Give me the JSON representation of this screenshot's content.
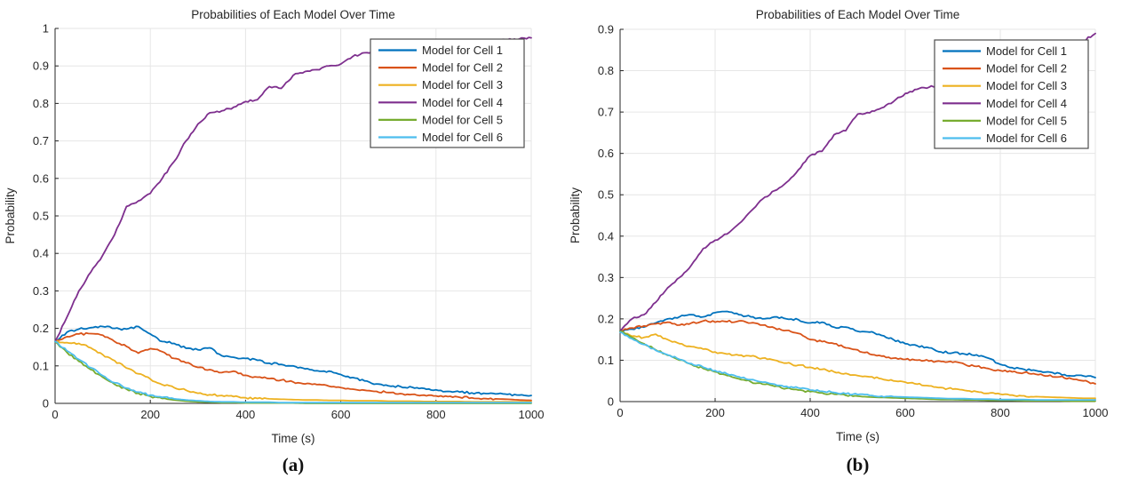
{
  "figure_background": "#ffffff",
  "colors": {
    "axis": "#262626",
    "tick_label": "#262626",
    "grid": "#e6e6e6",
    "legend_border": "#4d4d4d",
    "legend_background": "#ffffff"
  },
  "chart_data": [
    {
      "type": "line",
      "title": "Probabilities of Each Model Over Time",
      "xlabel": "Time (s)",
      "ylabel": "Probability",
      "caption": "(a)",
      "xlim": [
        0,
        1000
      ],
      "ylim": [
        0,
        1
      ],
      "xticks": [
        0,
        200,
        400,
        600,
        800,
        1000
      ],
      "yticks": [
        0,
        0.1,
        0.2,
        0.3,
        0.4,
        0.5,
        0.6,
        0.7,
        0.8,
        0.9,
        1
      ],
      "ytick_labels": [
        "0",
        "0.1",
        "0.2",
        "0.3",
        "0.4",
        "0.5",
        "0.6",
        "0.7",
        "0.8",
        "0.9",
        "1"
      ],
      "grid": true,
      "legend_position": "top-right",
      "x": [
        0,
        25,
        50,
        75,
        100,
        125,
        150,
        175,
        200,
        225,
        250,
        275,
        300,
        325,
        350,
        375,
        400,
        425,
        450,
        475,
        500,
        525,
        550,
        575,
        600,
        625,
        650,
        675,
        700,
        725,
        750,
        775,
        800,
        825,
        850,
        875,
        900,
        925,
        950,
        975,
        1000
      ],
      "series": [
        {
          "name": "Model for Cell 1",
          "color": "#0072BD",
          "values": [
            0.165,
            0.19,
            0.198,
            0.202,
            0.205,
            0.2,
            0.198,
            0.205,
            0.185,
            0.165,
            0.16,
            0.147,
            0.143,
            0.148,
            0.127,
            0.123,
            0.12,
            0.115,
            0.107,
            0.104,
            0.1,
            0.092,
            0.087,
            0.086,
            0.077,
            0.069,
            0.06,
            0.052,
            0.047,
            0.045,
            0.043,
            0.04,
            0.036,
            0.032,
            0.03,
            0.028,
            0.027,
            0.025,
            0.024,
            0.022,
            0.021
          ]
        },
        {
          "name": "Model for Cell 2",
          "color": "#D95319",
          "values": [
            0.165,
            0.178,
            0.185,
            0.186,
            0.182,
            0.165,
            0.152,
            0.134,
            0.146,
            0.138,
            0.12,
            0.108,
            0.096,
            0.09,
            0.082,
            0.086,
            0.075,
            0.07,
            0.066,
            0.062,
            0.057,
            0.052,
            0.05,
            0.046,
            0.042,
            0.038,
            0.035,
            0.032,
            0.029,
            0.026,
            0.024,
            0.022,
            0.02,
            0.018,
            0.016,
            0.015,
            0.013,
            0.012,
            0.011,
            0.009,
            0.008
          ]
        },
        {
          "name": "Model for Cell 3",
          "color": "#EDB120",
          "values": [
            0.165,
            0.162,
            0.16,
            0.148,
            0.13,
            0.114,
            0.094,
            0.079,
            0.065,
            0.05,
            0.042,
            0.035,
            0.027,
            0.023,
            0.021,
            0.018,
            0.015,
            0.013,
            0.012,
            0.011,
            0.01,
            0.009,
            0.009,
            0.008,
            0.008,
            0.007,
            0.007,
            0.007,
            0.006,
            0.006,
            0.006,
            0.005,
            0.005,
            0.005,
            0.005,
            0.004,
            0.004,
            0.004,
            0.004,
            0.004,
            0.004
          ]
        },
        {
          "name": "Model for Cell 4",
          "color": "#7E2F8E",
          "values": [
            0.165,
            0.23,
            0.3,
            0.35,
            0.395,
            0.45,
            0.525,
            0.54,
            0.56,
            0.6,
            0.645,
            0.7,
            0.745,
            0.775,
            0.78,
            0.79,
            0.805,
            0.81,
            0.845,
            0.84,
            0.875,
            0.885,
            0.89,
            0.9,
            0.905,
            0.925,
            0.935,
            0.94,
            0.944,
            0.948,
            0.951,
            0.954,
            0.957,
            0.96,
            0.962,
            0.964,
            0.966,
            0.968,
            0.97,
            0.972,
            0.975
          ]
        },
        {
          "name": "Model for Cell 5",
          "color": "#77AC30",
          "values": [
            0.165,
            0.136,
            0.112,
            0.09,
            0.07,
            0.051,
            0.038,
            0.027,
            0.019,
            0.013,
            0.009,
            0.006,
            0.004,
            0.003,
            0.002,
            0.002,
            0.001,
            0.001,
            0.001,
            0.001,
            0.001,
            0,
            0,
            0,
            0,
            0,
            0,
            0,
            0,
            0,
            0,
            0,
            0,
            0,
            0,
            0,
            0,
            0,
            0,
            0,
            0
          ]
        },
        {
          "name": "Model for Cell 6",
          "color": "#4DBEEE",
          "values": [
            0.165,
            0.14,
            0.117,
            0.095,
            0.074,
            0.055,
            0.041,
            0.03,
            0.022,
            0.016,
            0.012,
            0.009,
            0.007,
            0.005,
            0.004,
            0.004,
            0.003,
            0.003,
            0.003,
            0.002,
            0.002,
            0.002,
            0.002,
            0.002,
            0.002,
            0.002,
            0.002,
            0.002,
            0.002,
            0.002,
            0.002,
            0.002,
            0.002,
            0.002,
            0.002,
            0.002,
            0.002,
            0.002,
            0.002,
            0.002,
            0.002
          ]
        }
      ]
    },
    {
      "type": "line",
      "title": "Probabilities of Each Model Over Time",
      "xlabel": "Time (s)",
      "ylabel": "Probability",
      "caption": "(b)",
      "xlim": [
        0,
        1000
      ],
      "ylim": [
        0,
        0.9
      ],
      "xticks": [
        0,
        200,
        400,
        600,
        800,
        1000
      ],
      "yticks": [
        0,
        0.1,
        0.2,
        0.3,
        0.4,
        0.5,
        0.6,
        0.7,
        0.8,
        0.9
      ],
      "ytick_labels": [
        "0",
        "0.1",
        "0.2",
        "0.3",
        "0.4",
        "0.5",
        "0.6",
        "0.7",
        "0.8",
        "0.9"
      ],
      "grid": true,
      "legend_position": "top-right",
      "x": [
        0,
        25,
        50,
        75,
        100,
        125,
        150,
        175,
        200,
        225,
        250,
        275,
        300,
        325,
        350,
        375,
        400,
        425,
        450,
        475,
        500,
        525,
        550,
        575,
        600,
        625,
        650,
        675,
        700,
        725,
        750,
        775,
        800,
        825,
        850,
        875,
        900,
        925,
        950,
        975,
        1000
      ],
      "series": [
        {
          "name": "Model for Cell 1",
          "color": "#0072BD",
          "values": [
            0.17,
            0.175,
            0.18,
            0.19,
            0.2,
            0.205,
            0.21,
            0.205,
            0.215,
            0.218,
            0.21,
            0.205,
            0.2,
            0.205,
            0.2,
            0.198,
            0.19,
            0.192,
            0.18,
            0.18,
            0.17,
            0.168,
            0.16,
            0.15,
            0.14,
            0.135,
            0.13,
            0.12,
            0.118,
            0.115,
            0.113,
            0.105,
            0.09,
            0.082,
            0.078,
            0.075,
            0.072,
            0.068,
            0.062,
            0.062,
            0.058
          ]
        },
        {
          "name": "Model for Cell 2",
          "color": "#D95319",
          "values": [
            0.17,
            0.178,
            0.183,
            0.188,
            0.192,
            0.185,
            0.19,
            0.195,
            0.192,
            0.193,
            0.195,
            0.19,
            0.185,
            0.178,
            0.172,
            0.165,
            0.15,
            0.145,
            0.14,
            0.13,
            0.125,
            0.115,
            0.11,
            0.105,
            0.102,
            0.1,
            0.098,
            0.097,
            0.095,
            0.09,
            0.085,
            0.08,
            0.075,
            0.072,
            0.07,
            0.066,
            0.062,
            0.06,
            0.055,
            0.05,
            0.043
          ]
        },
        {
          "name": "Model for Cell 3",
          "color": "#EDB120",
          "values": [
            0.17,
            0.158,
            0.155,
            0.163,
            0.15,
            0.14,
            0.133,
            0.127,
            0.12,
            0.115,
            0.112,
            0.11,
            0.105,
            0.1,
            0.093,
            0.088,
            0.083,
            0.078,
            0.072,
            0.068,
            0.063,
            0.06,
            0.055,
            0.05,
            0.047,
            0.042,
            0.038,
            0.034,
            0.03,
            0.027,
            0.024,
            0.02,
            0.018,
            0.016,
            0.014,
            0.012,
            0.011,
            0.01,
            0.009,
            0.008,
            0.008
          ]
        },
        {
          "name": "Model for Cell 4",
          "color": "#7E2F8E",
          "values": [
            0.17,
            0.2,
            0.21,
            0.24,
            0.275,
            0.3,
            0.33,
            0.37,
            0.39,
            0.405,
            0.43,
            0.46,
            0.49,
            0.51,
            0.53,
            0.56,
            0.595,
            0.605,
            0.645,
            0.655,
            0.695,
            0.698,
            0.71,
            0.725,
            0.745,
            0.755,
            0.76,
            0.765,
            0.775,
            0.785,
            0.795,
            0.805,
            0.815,
            0.825,
            0.835,
            0.845,
            0.85,
            0.855,
            0.862,
            0.872,
            0.89
          ]
        },
        {
          "name": "Model for Cell 5",
          "color": "#77AC30",
          "values": [
            0.17,
            0.155,
            0.14,
            0.125,
            0.112,
            0.1,
            0.09,
            0.08,
            0.072,
            0.063,
            0.055,
            0.048,
            0.042,
            0.037,
            0.032,
            0.028,
            0.024,
            0.021,
            0.018,
            0.015,
            0.013,
            0.011,
            0.01,
            0.009,
            0.008,
            0.007,
            0.006,
            0.005,
            0.005,
            0.004,
            0.004,
            0.003,
            0.003,
            0.003,
            0.002,
            0.002,
            0.002,
            0.002,
            0.001,
            0.001,
            0.001
          ]
        },
        {
          "name": "Model for Cell 6",
          "color": "#4DBEEE",
          "values": [
            0.168,
            0.152,
            0.138,
            0.124,
            0.113,
            0.102,
            0.092,
            0.083,
            0.075,
            0.067,
            0.06,
            0.053,
            0.047,
            0.042,
            0.037,
            0.033,
            0.028,
            0.025,
            0.022,
            0.019,
            0.017,
            0.015,
            0.013,
            0.012,
            0.011,
            0.01,
            0.009,
            0.008,
            0.007,
            0.007,
            0.006,
            0.006,
            0.005,
            0.005,
            0.005,
            0.004,
            0.004,
            0.004,
            0.004,
            0.004,
            0.004
          ]
        }
      ]
    }
  ]
}
